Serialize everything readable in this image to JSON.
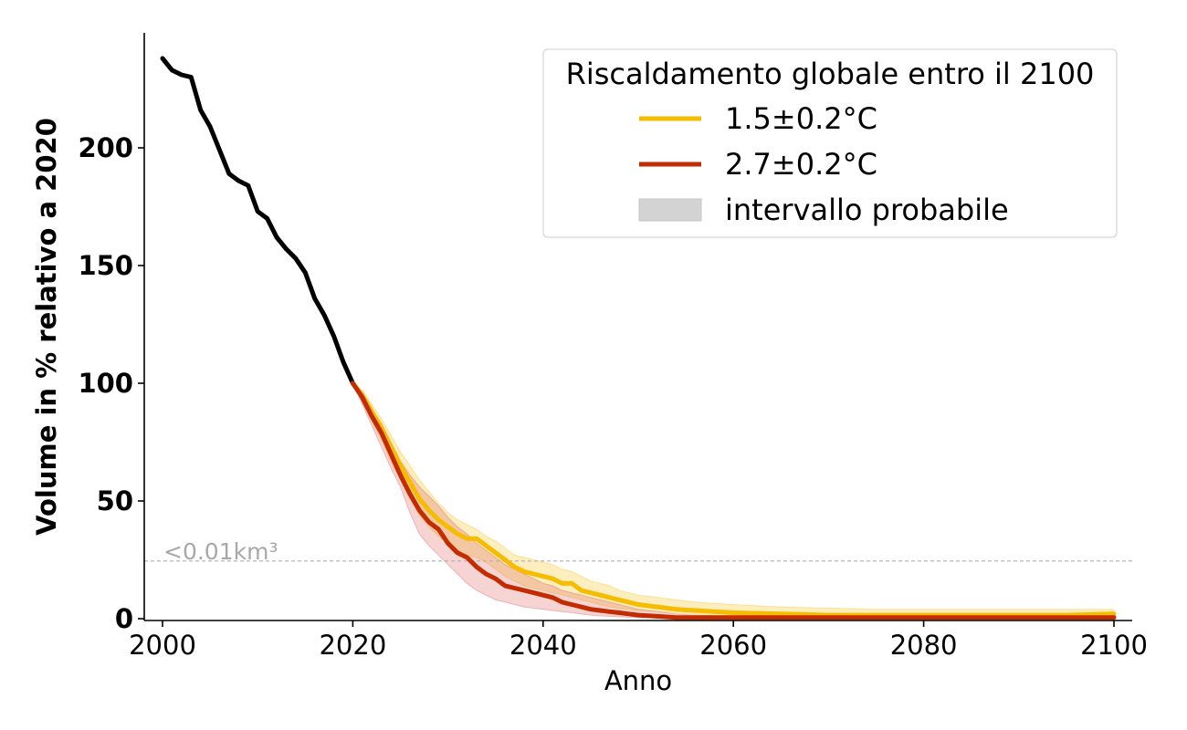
{
  "chart_data": {
    "type": "line",
    "xlabel": "Anno",
    "ylabel": "Volume in % relativo a 2020",
    "xlim": [
      1998,
      2102
    ],
    "ylim": [
      0,
      250
    ],
    "xticks": [
      2000,
      2020,
      2040,
      2060,
      2080,
      2100
    ],
    "yticks": [
      0,
      50,
      100,
      150,
      200
    ],
    "grid": false,
    "legend": {
      "position": "top-right",
      "title": "Riscaldamento globale entro il 2100",
      "entries": [
        "1.5±0.2°C",
        "2.7±0.2°C",
        "intervallo probabile"
      ]
    },
    "threshold": {
      "y": 24.5,
      "label": "<0.01km³"
    },
    "historical": {
      "color": "#000000",
      "x": [
        2000,
        2001,
        2002,
        2003,
        2004,
        2005,
        2006,
        2007,
        2008,
        2009,
        2010,
        2011,
        2012,
        2013,
        2014,
        2015,
        2016,
        2017,
        2018,
        2019,
        2020
      ],
      "y": [
        238,
        233,
        231,
        230,
        216,
        209,
        199,
        189,
        186,
        184,
        173,
        170,
        162,
        157,
        153,
        147,
        136,
        129,
        120,
        109,
        100
      ]
    },
    "series": [
      {
        "name": "1.5±0.2°C",
        "color": "#F5BC00",
        "band_color": "#F5BC00",
        "x": [
          2020,
          2021,
          2022,
          2023,
          2024,
          2025,
          2026,
          2027,
          2028,
          2029,
          2030,
          2031,
          2032,
          2033,
          2034,
          2035,
          2036,
          2037,
          2038,
          2039,
          2040,
          2041,
          2042,
          2043,
          2044,
          2045,
          2046,
          2047,
          2048,
          2049,
          2050,
          2052,
          2054,
          2056,
          2058,
          2060,
          2065,
          2070,
          2075,
          2080,
          2085,
          2090,
          2095,
          2100
        ],
        "y": [
          100,
          95,
          88,
          81,
          73,
          65,
          58,
          51,
          46,
          42,
          39,
          36,
          34,
          34,
          31,
          28,
          25,
          22,
          20,
          19,
          18,
          17,
          15,
          15,
          12,
          11,
          10,
          9,
          8,
          7,
          6,
          5,
          4,
          3.5,
          3,
          2.5,
          2,
          1.5,
          1.5,
          1.5,
          1.5,
          1.5,
          1.5,
          2
        ],
        "y_low": [
          100,
          92,
          84,
          76,
          67,
          59,
          51,
          44,
          39,
          35,
          32,
          29,
          27,
          26,
          24,
          21,
          18,
          16,
          14,
          13,
          12,
          11,
          10,
          9,
          8,
          7,
          6,
          5,
          4.5,
          4,
          3.5,
          3,
          2.5,
          2,
          1.5,
          1.2,
          1,
          0.8,
          0.8,
          0.8,
          0.8,
          0.8,
          0.8,
          1
        ],
        "y_high": [
          100,
          97,
          91,
          85,
          78,
          71,
          65,
          59,
          54,
          49,
          45,
          42,
          40,
          38,
          35,
          33,
          30,
          27,
          26,
          25,
          24,
          23,
          21,
          20,
          18,
          16,
          15,
          14,
          12,
          11,
          10,
          9,
          8,
          7,
          6.5,
          6,
          5,
          4.5,
          4,
          4,
          4,
          4,
          4,
          4
        ]
      },
      {
        "name": "2.7±0.2°C",
        "color": "#C22C00",
        "band_color": "#D9534F",
        "x": [
          2020,
          2021,
          2022,
          2023,
          2024,
          2025,
          2026,
          2027,
          2028,
          2029,
          2030,
          2031,
          2032,
          2033,
          2034,
          2035,
          2036,
          2037,
          2038,
          2039,
          2040,
          2041,
          2042,
          2043,
          2044,
          2045,
          2046,
          2047,
          2048,
          2049,
          2050,
          2052,
          2054,
          2056,
          2058,
          2060,
          2065,
          2070,
          2075,
          2080,
          2085,
          2090,
          2095,
          2100
        ],
        "y": [
          100,
          94,
          86,
          79,
          70,
          61,
          53,
          46,
          41,
          38,
          32,
          28,
          26,
          22,
          19,
          17,
          14,
          13,
          12,
          11,
          10,
          9,
          7,
          6,
          5,
          4,
          3.5,
          3,
          2.5,
          2,
          1.5,
          1,
          0.5,
          0.5,
          0.5,
          0.5,
          0.5,
          0.5,
          0.5,
          0.5,
          0.5,
          0.5,
          0.5,
          0.5
        ],
        "y_low": [
          100,
          91,
          82,
          73,
          64,
          56,
          45,
          36,
          31,
          27,
          23,
          19,
          15,
          12,
          10,
          8,
          7,
          6,
          5,
          4.5,
          4,
          3.5,
          3,
          2.5,
          2,
          1.5,
          1.2,
          1,
          0.8,
          0.6,
          0.5,
          0.3,
          0.2,
          0.2,
          0.2,
          0.2,
          0.2,
          0.2,
          0.2,
          0.2,
          0.2,
          0.2,
          0.2,
          0.2
        ],
        "y_high": [
          100,
          96,
          89,
          83,
          75,
          67,
          61,
          56,
          52,
          48,
          43,
          39,
          36,
          32,
          29,
          26,
          23,
          21,
          19,
          17,
          15,
          14,
          12,
          11,
          10,
          9,
          8,
          7,
          6,
          5,
          4,
          3,
          2,
          1.5,
          1.2,
          1,
          0.8,
          0.8,
          0.8,
          0.8,
          0.8,
          0.8,
          0.8,
          0.8
        ]
      }
    ]
  }
}
